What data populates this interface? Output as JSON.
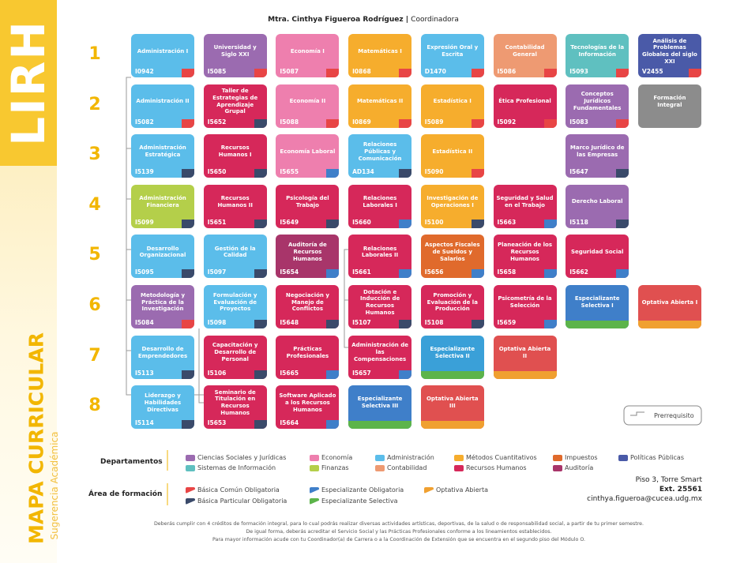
{
  "sidebar": {
    "program": "LIRH",
    "title": "MAPA CURRICULAR",
    "subtitle": "Sugerencia Académica"
  },
  "header": {
    "coordinator": "Mtra. Cinthya Figueroa Rodríguez",
    "role": "Coordinadora"
  },
  "semesters": [
    {
      "number": "1",
      "courses": [
        {
          "name": "Administración I",
          "code": "I0942",
          "color": "#5bbdea",
          "area": "#e84545"
        },
        {
          "name": "Universidad y Siglo XXI",
          "code": "I5085",
          "color": "#9b6bb0",
          "area": "#e84545"
        },
        {
          "name": "Economía I",
          "code": "I5087",
          "color": "#ee7fae",
          "area": "#e84545"
        },
        {
          "name": "Matemáticas I",
          "code": "I0868",
          "color": "#f6ad2d",
          "area": "#e84545"
        },
        {
          "name": "Expresión Oral y Escrita",
          "code": "D1470",
          "color": "#5bbdea",
          "area": "#e84545"
        },
        {
          "name": "Contabilidad General",
          "code": "I5086",
          "color": "#ee9a72",
          "area": "#e84545"
        },
        {
          "name": "Tecnologías de la Información",
          "code": "I5093",
          "color": "#5fc0c0",
          "area": "#e84545"
        },
        {
          "name": "Análisis de Problemas Globales del siglo XXI",
          "code": "V2455",
          "color": "#4a5aa8",
          "area": "#e84545"
        }
      ]
    },
    {
      "number": "2",
      "courses": [
        {
          "name": "Administración II",
          "code": "I5082",
          "color": "#5bbdea",
          "area": "#e84545"
        },
        {
          "name": "Taller de Estrategias de Aprendizaje Grupal",
          "code": "I5652",
          "color": "#d6285a",
          "area": "#3a4a6a"
        },
        {
          "name": "Economía II",
          "code": "I5088",
          "color": "#ee7fae",
          "area": "#e84545"
        },
        {
          "name": "Matemáticas II",
          "code": "I0869",
          "color": "#f6ad2d",
          "area": "#e84545"
        },
        {
          "name": "Estadística I",
          "code": "I5089",
          "color": "#f6ad2d",
          "area": "#e84545"
        },
        {
          "name": "Ética Profesional",
          "code": "I5092",
          "color": "#d6285a",
          "area": "#e84545"
        },
        {
          "name": "Conceptos Jurídicos Fundamentales",
          "code": "I5083",
          "color": "#9b6bb0",
          "area": "#e84545"
        },
        {
          "name": "Formación Integral",
          "code": null,
          "color": "#8c8c8c",
          "area": null
        }
      ]
    },
    {
      "number": "3",
      "courses": [
        {
          "name": "Administración Estratégica",
          "code": "I5139",
          "color": "#5bbdea",
          "area": "#3a4a6a"
        },
        {
          "name": "Recursos Humanos I",
          "code": "I5650",
          "color": "#d6285a",
          "area": "#3a4a6a"
        },
        {
          "name": "Economía Laboral",
          "code": "I5655",
          "color": "#ee7fae",
          "area": "#3f7fc9"
        },
        {
          "name": "Relaciones Públicas y Comunicación",
          "code": "AD134",
          "color": "#5bbdea",
          "area": "#3a4a6a"
        },
        {
          "name": "Estadística II",
          "code": "I5090",
          "color": "#f6ad2d",
          "area": "#e84545"
        },
        null,
        {
          "name": "Marco Jurídico de las Empresas",
          "code": "I5647",
          "color": "#9b6bb0",
          "area": "#3a4a6a"
        }
      ]
    },
    {
      "number": "4",
      "courses": [
        {
          "name": "Administración Financiera",
          "code": "I5099",
          "color": "#b4cf4a",
          "area": "#3a4a6a"
        },
        {
          "name": "Recursos Humanos II",
          "code": "I5651",
          "color": "#d6285a",
          "area": "#3a4a6a"
        },
        {
          "name": "Psicología del Trabajo",
          "code": "I5649",
          "color": "#d6285a",
          "area": "#3a4a6a"
        },
        {
          "name": "Relaciones Laborales I",
          "code": "I5660",
          "color": "#d6285a",
          "area": "#3f7fc9"
        },
        {
          "name": "Investigación de Operaciones I",
          "code": "I5100",
          "color": "#f6ad2d",
          "area": "#3a4a6a"
        },
        {
          "name": "Seguridad y Salud en el Trabajo",
          "code": "I5663",
          "color": "#d6285a",
          "area": "#3f7fc9"
        },
        {
          "name": "Derecho Laboral",
          "code": "I5118",
          "color": "#9b6bb0",
          "area": "#3a4a6a"
        }
      ]
    },
    {
      "number": "5",
      "courses": [
        {
          "name": "Desarrollo Organizacional",
          "code": "I5095",
          "color": "#5bbdea",
          "area": "#3a4a6a"
        },
        {
          "name": "Gestión de la Calidad",
          "code": "I5097",
          "color": "#5bbdea",
          "area": "#3a4a6a"
        },
        {
          "name": "Auditoría de Recursos Humanos",
          "code": "I5654",
          "color": "#a8356a",
          "area": "#3f7fc9"
        },
        {
          "name": "Relaciones Laborales II",
          "code": "I5661",
          "color": "#d6285a",
          "area": "#3f7fc9"
        },
        {
          "name": "Aspectos Fiscales de Sueldos y Salarios",
          "code": "I5656",
          "color": "#e06a2c",
          "area": "#3f7fc9"
        },
        {
          "name": "Planeación de los Recursos Humanos",
          "code": "I5658",
          "color": "#d6285a",
          "area": "#3f7fc9"
        },
        {
          "name": "Seguridad Social",
          "code": "I5662",
          "color": "#d6285a",
          "area": "#3f7fc9"
        }
      ]
    },
    {
      "number": "6",
      "courses": [
        {
          "name": "Metodología y Práctica de la Investigación",
          "code": "I5084",
          "color": "#9b6bb0",
          "area": "#e84545"
        },
        {
          "name": "Formulación y Evaluación de Proyectos",
          "code": "I5098",
          "color": "#5bbdea",
          "area": "#3a4a6a"
        },
        {
          "name": "Negociación y Manejo de Conflictos",
          "code": "I5648",
          "color": "#d6285a",
          "area": "#3a4a6a"
        },
        {
          "name": "Dotación e Inducción de Recursos Humanos",
          "code": "I5107",
          "color": "#d6285a",
          "area": "#3a4a6a"
        },
        {
          "name": "Promoción y Evaluación de la Producción",
          "code": "I5108",
          "color": "#d6285a",
          "area": "#3a4a6a"
        },
        {
          "name": "Psicometría de la Selección",
          "code": "I5659",
          "color": "#d6285a",
          "area": "#3f7fc9"
        },
        {
          "name": "Especializante Selectiva I",
          "code": null,
          "color": "#3f7fc9",
          "area": "#5cb44a"
        },
        {
          "name": "Optativa Abierta I",
          "code": null,
          "color": "#e05050",
          "area": "#f0a030"
        }
      ]
    },
    {
      "number": "7",
      "courses": [
        {
          "name": "Desarrollo de Emprendedores",
          "code": "I5113",
          "color": "#5bbdea",
          "area": "#3a4a6a"
        },
        {
          "name": "Capacitación y Desarrollo de Personal",
          "code": "I5106",
          "color": "#d6285a",
          "area": "#3a4a6a"
        },
        {
          "name": "Prácticas Profesionales",
          "code": "I5665",
          "color": "#d6285a",
          "area": "#3f7fc9"
        },
        {
          "name": "Administración de las Compensaciones",
          "code": "I5657",
          "color": "#d6285a",
          "area": "#3f7fc9"
        },
        {
          "name": "Especializante Selectiva II",
          "code": null,
          "color": "#3aa0d8",
          "area": "#5cb44a"
        },
        {
          "name": "Optativa Abierta II",
          "code": null,
          "color": "#e05050",
          "area": "#f0a030"
        }
      ]
    },
    {
      "number": "8",
      "courses": [
        {
          "name": "Liderazgo y Habilidades Directivas",
          "code": "I5114",
          "color": "#5bbdea",
          "area": "#3a4a6a"
        },
        {
          "name": "Seminario de Titulación en Recursos Humanos",
          "code": "I5653",
          "color": "#d6285a",
          "area": "#3a4a6a"
        },
        {
          "name": "Software Aplicado a los Recursos Humanos",
          "code": "I5664",
          "color": "#d6285a",
          "area": "#3f7fc9"
        },
        {
          "name": "Especializante Selectiva III",
          "code": null,
          "color": "#3f7fc9",
          "area": "#5cb44a"
        },
        {
          "name": "Optativa Abierta III",
          "code": null,
          "color": "#e05050",
          "area": "#f0a030"
        }
      ]
    }
  ],
  "prerequisite_legend": "Prerrequisito",
  "departments": {
    "title": "Departamentos",
    "items": [
      {
        "name": "Ciencias Sociales y Jurídicas",
        "color": "#9b6bb0"
      },
      {
        "name": "Economía",
        "color": "#ee7fae"
      },
      {
        "name": "Administración",
        "color": "#5bbdea"
      },
      {
        "name": "Métodos Cuantitativos",
        "color": "#f6ad2d"
      },
      {
        "name": "Impuestos",
        "color": "#e06a2c"
      },
      {
        "name": "Políticas Públicas",
        "color": "#4a5aa8"
      },
      {
        "name": "Sistemas de Información",
        "color": "#5fc0c0"
      },
      {
        "name": "Finanzas",
        "color": "#b4cf4a"
      },
      {
        "name": "Contabilidad",
        "color": "#ee9a72"
      },
      {
        "name": "Recursos Humanos",
        "color": "#d6285a"
      },
      {
        "name": "Auditoría",
        "color": "#a8356a"
      }
    ]
  },
  "areas": {
    "title": "Área de formación",
    "items": [
      {
        "name": "Básica Común Obligatoria",
        "color": "#e84545"
      },
      {
        "name": "Especializante Obligatoria",
        "color": "#3f7fc9"
      },
      {
        "name": "Optativa Abierta",
        "color": "#f0a030"
      },
      {
        "name": "Básica Particular Obligatoria",
        "color": "#3a4a6a"
      },
      {
        "name": "Especializante Selectiva",
        "color": "#5cb44a"
      }
    ]
  },
  "contact": {
    "location": "Piso 3, Torre Smart",
    "extension": "Ext. 25561",
    "email": "cinthya.figueroa@cucea.udg.mx"
  },
  "notes": [
    "Deberás cumplir con 4 créditos de formación integral, para lo cual podrás realizar diversas actividades artísticas, deportivas, de la salud o de responsabilidad social, a partir de tu primer semestre.",
    "De igual forma, deberás acreditar el Servicio Social y las Prácticas Profesionales conforme a los lineamientos establecidos.",
    "Para mayor información acude con tu Coordinador(a) de Carrera o a la Coordinación de Extensión que se encuentra en el segundo piso del Módulo O."
  ]
}
